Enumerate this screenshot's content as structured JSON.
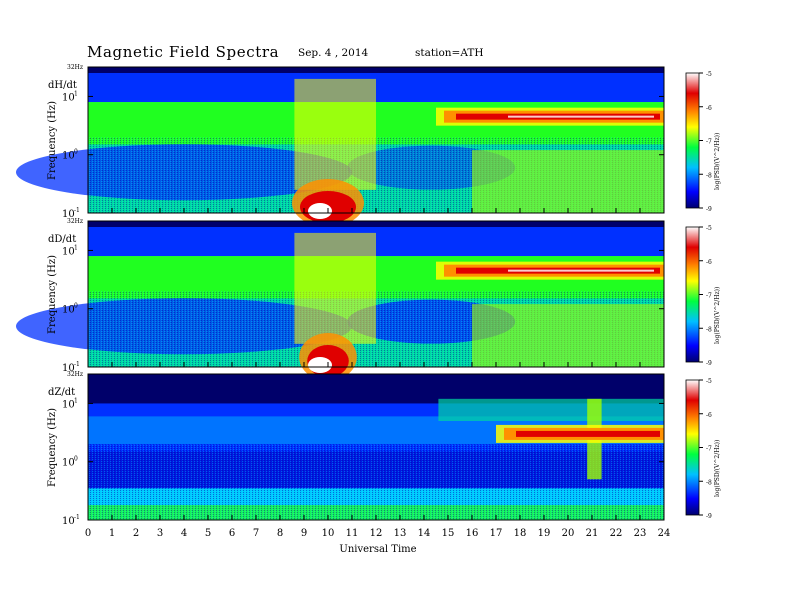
{
  "header": {
    "title": "Magnetic  Field  Spectra",
    "date": "Sep. 4  , 2014",
    "station": "station=ATH"
  },
  "chart_data": [
    {
      "type": "heatmap",
      "panel_label": "dH/dt",
      "ylabel": "Frequency  (Hz)",
      "top_tick": "32Hz",
      "y_ticks": [
        "10",
        "10",
        "10"
      ],
      "y_tick_exponents": [
        "1",
        "0",
        "-1"
      ],
      "colorbar_ticks": [
        "-5",
        "-6",
        "-7",
        "-8",
        "-9"
      ],
      "colorbar_label": "log(PSD/(V^2/Hz))",
      "features": [
        {
          "t0": 14.5,
          "t1": 24,
          "f": 4.5,
          "kind": "band",
          "level": "-5.5"
        },
        {
          "t0": 8.5,
          "t1": 11.5,
          "f": 0.12,
          "kind": "burst",
          "level": "-5"
        }
      ]
    },
    {
      "type": "heatmap",
      "panel_label": "dD/dt",
      "ylabel": "Frequency  (Hz)",
      "top_tick": "32Hz",
      "y_ticks": [
        "10",
        "10",
        "10"
      ],
      "y_tick_exponents": [
        "1",
        "0",
        "-1"
      ],
      "colorbar_ticks": [
        "-5",
        "-6",
        "-7",
        "-8",
        "-9"
      ],
      "colorbar_label": "log(PSD/(V^2/Hz))",
      "features": [
        {
          "t0": 14.5,
          "t1": 24,
          "f": 4.5,
          "kind": "band",
          "level": "-5.5"
        },
        {
          "t0": 8.8,
          "t1": 11.2,
          "f": 0.12,
          "kind": "burst",
          "level": "-5"
        }
      ]
    },
    {
      "type": "heatmap",
      "panel_label": "dZ/dt",
      "ylabel": "Frequency  (Hz)",
      "top_tick": "32Hz",
      "y_ticks": [
        "10",
        "10",
        "10"
      ],
      "y_tick_exponents": [
        "1",
        "0",
        "-1"
      ],
      "colorbar_ticks": [
        "-5",
        "-6",
        "-7",
        "-8",
        "-9"
      ],
      "colorbar_label": "log(PSD/(V^2/Hz))",
      "features": [
        {
          "t0": 17,
          "t1": 24,
          "f": 3,
          "kind": "band",
          "level": "-6"
        }
      ]
    }
  ],
  "x_axis": {
    "label": "Universal Time",
    "ticks": [
      "0",
      "1",
      "2",
      "3",
      "4",
      "5",
      "6",
      "7",
      "8",
      "9",
      "10",
      "11",
      "12",
      "13",
      "14",
      "15",
      "16",
      "17",
      "18",
      "19",
      "20",
      "21",
      "22",
      "23",
      "24"
    ]
  }
}
